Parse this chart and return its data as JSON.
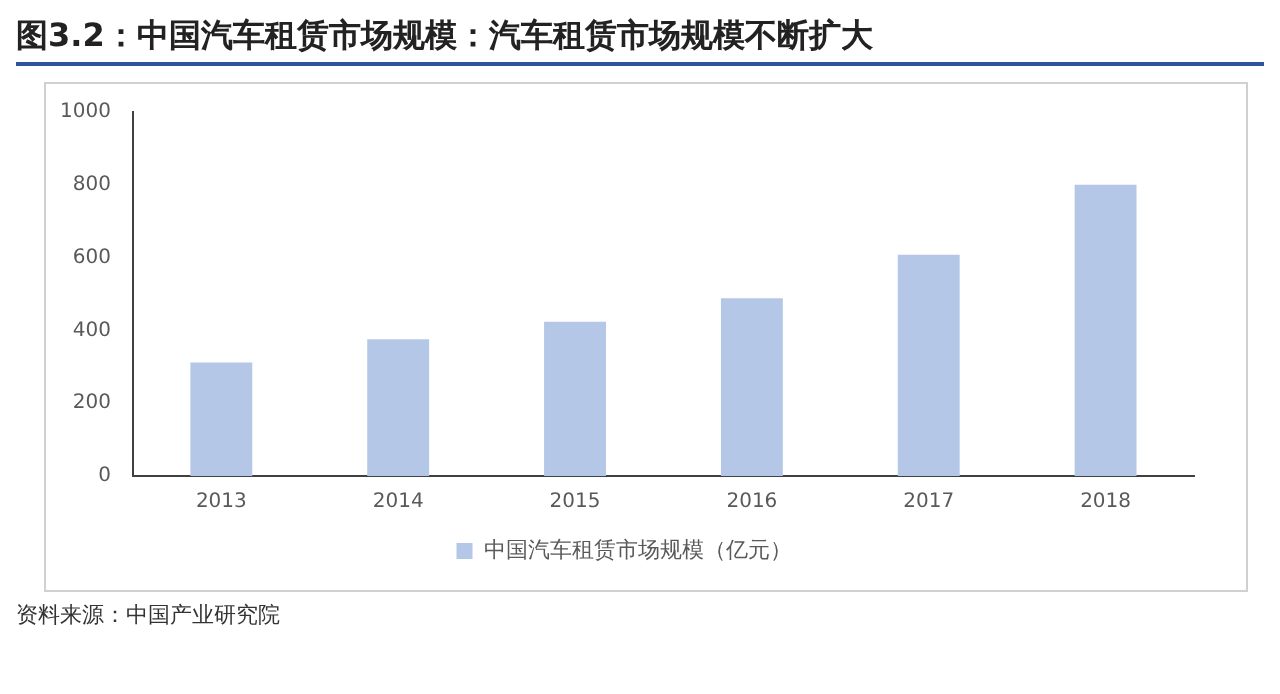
{
  "chart_data": {
    "type": "bar",
    "title": "图3.2：中国汽车租赁市场规模：汽车租赁市场规模不断扩大",
    "categories": [
      "2013",
      "2014",
      "2015",
      "2016",
      "2017",
      "2018"
    ],
    "series": [
      {
        "name": "中国汽车租赁市场规模（亿元）",
        "color": "#b4c7e7",
        "values": [
          312,
          376,
          424,
          488,
          608,
          800
        ]
      }
    ],
    "ylim": [
      0,
      1000
    ],
    "yticks": [
      0,
      200,
      400,
      600,
      800,
      1000
    ],
    "grid": false,
    "legend": "bottom",
    "annotations": [
      "资料来源：中国产业研究院"
    ]
  }
}
